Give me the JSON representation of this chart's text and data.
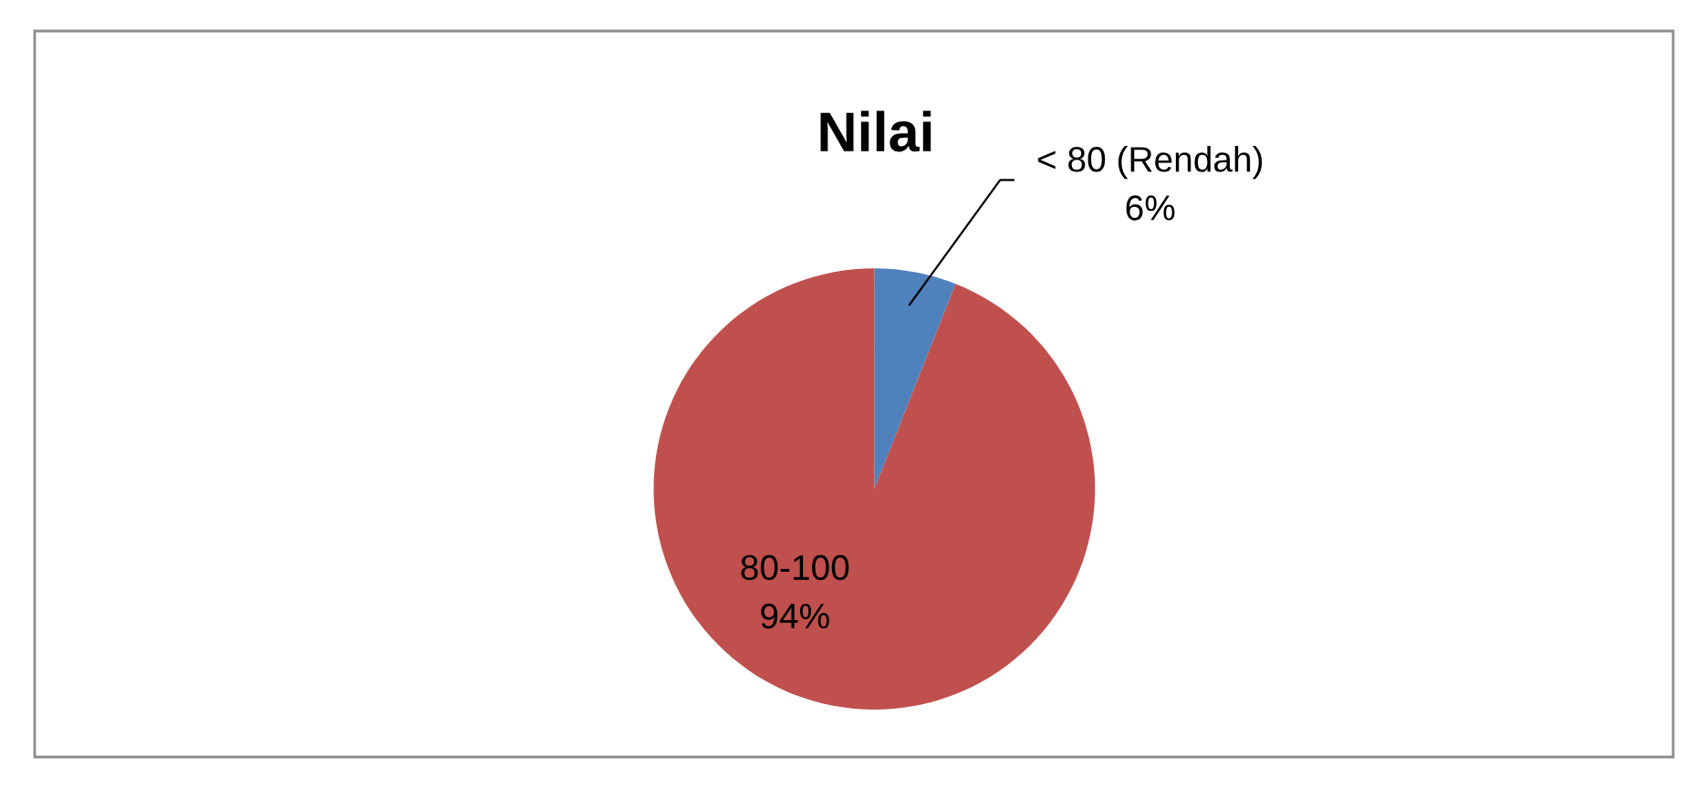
{
  "chart_data": {
    "type": "pie",
    "title": "Nilai",
    "categories": [
      "< 80 (Rendah)",
      "80-100"
    ],
    "values": [
      6,
      94
    ],
    "value_labels": [
      "6%",
      "94%"
    ],
    "colors": [
      "#4f81bd",
      "#c0504d"
    ],
    "legend": false
  }
}
